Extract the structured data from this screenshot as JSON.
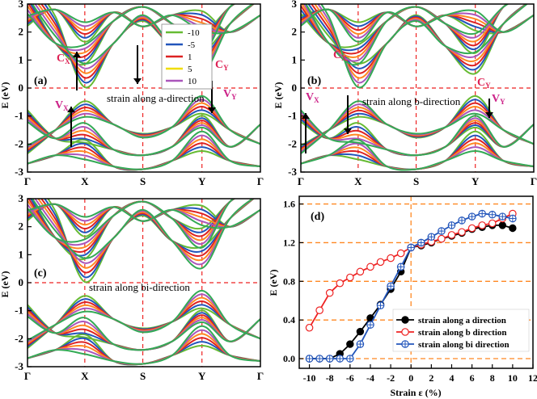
{
  "colors": {
    "-10": "#66bb33",
    "-5": "#2255bb",
    "1": "#dd2222",
    "5": "#f0dd00",
    "10": "#aa55bb",
    "mid_orange": "#ff8822",
    "mid_green": "#33aa55",
    "red_dash": "#ee2222",
    "orange_dash": "#ff8822",
    "label_red": "#dd2255",
    "label_magenta": "#cc2288"
  },
  "band_panels": {
    "kpoints": [
      "Γ",
      "X",
      "S",
      "Y",
      "Γ"
    ],
    "y_ticks": [
      "3",
      "2",
      "1",
      "0",
      "-1",
      "-2",
      "-3"
    ],
    "ylabel": "E (eV)",
    "legend": [
      "-10",
      "-5",
      "1",
      "5",
      "10"
    ],
    "a": {
      "tag": "(a)",
      "text": "strain along a-direction",
      "cx": "C",
      "vx": "V",
      "cy": "C",
      "vy": "V",
      "sub_x": "X",
      "sub_y": "Y"
    },
    "b": {
      "tag": "(b)",
      "text": "strain along b-direction",
      "cx": "C",
      "vx": "V",
      "cy": "C",
      "vy": "V",
      "sub_x": "X",
      "sub_y": "Y"
    },
    "c": {
      "tag": "(c)",
      "text": "strain along bi-direction"
    }
  },
  "chart_data": [
    {
      "type": "line",
      "panel": "(d)",
      "title": "",
      "xlabel": "Strain ε (%)",
      "ylabel": "E (eV)",
      "xlim": [
        -11,
        12
      ],
      "ylim": [
        -0.1,
        1.68
      ],
      "x_ticks": [
        -10,
        -8,
        -6,
        -4,
        -2,
        0,
        2,
        4,
        6,
        8,
        10,
        12
      ],
      "y_ticks": [
        "0.0",
        "0.4",
        "0.8",
        "1.2",
        "1.6"
      ],
      "legend_position": "bottom-right",
      "series": [
        {
          "name": "strain along a direction",
          "marker": "filled-circle",
          "color": "#000000",
          "x": [
            -10,
            -9,
            -8,
            -7,
            -6,
            -5,
            -4,
            -3,
            -2,
            -1,
            0,
            1,
            2,
            3,
            4,
            5,
            6,
            7,
            8,
            9,
            10
          ],
          "y": [
            0,
            0,
            0,
            0.05,
            0.15,
            0.28,
            0.42,
            0.56,
            0.72,
            0.9,
            1.15,
            1.17,
            1.2,
            1.24,
            1.27,
            1.3,
            1.34,
            1.36,
            1.38,
            1.38,
            1.35
          ]
        },
        {
          "name": "strain along b direction",
          "marker": "open-circle",
          "color": "#ee2222",
          "x": [
            -10,
            -9,
            -8,
            -7,
            -6,
            -5,
            -4,
            -3,
            -2,
            -1,
            0,
            1,
            2,
            3,
            4,
            5,
            6,
            7,
            8,
            9,
            10
          ],
          "y": [
            0.32,
            0.5,
            0.68,
            0.78,
            0.84,
            0.9,
            0.95,
            1.0,
            1.04,
            1.09,
            1.15,
            1.18,
            1.21,
            1.24,
            1.28,
            1.31,
            1.35,
            1.38,
            1.4,
            1.45,
            1.5
          ]
        },
        {
          "name": "strain along bi direction",
          "marker": "crossed-circle",
          "color": "#2255bb",
          "x": [
            -10,
            -9,
            -8,
            -7,
            -6,
            -5,
            -4,
            -3,
            -2,
            -1,
            0,
            1,
            2,
            3,
            4,
            5,
            6,
            7,
            8,
            9,
            10
          ],
          "y": [
            0,
            0,
            0,
            0,
            0,
            0.15,
            0.35,
            0.55,
            0.75,
            0.95,
            1.15,
            1.2,
            1.26,
            1.32,
            1.38,
            1.43,
            1.47,
            1.5,
            1.49,
            1.47,
            1.45
          ]
        }
      ]
    }
  ]
}
